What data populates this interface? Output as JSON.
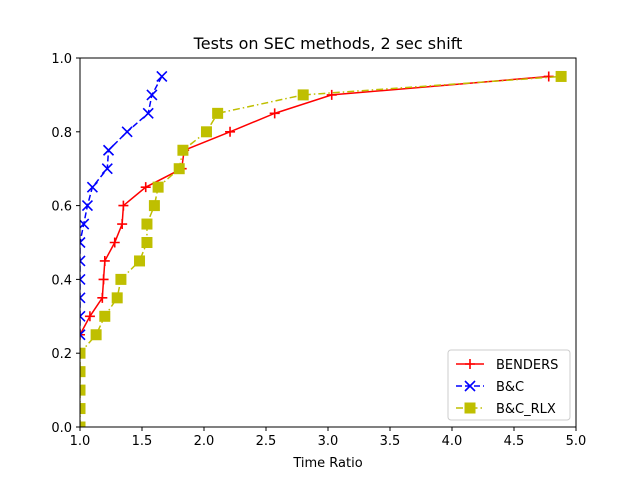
{
  "chart_data": {
    "type": "line",
    "title": "Tests on SEC methods, 2 sec shift",
    "xlabel": "Time Ratio",
    "ylabel": "",
    "xlim": [
      1.0,
      5.0
    ],
    "ylim": [
      0.0,
      1.0
    ],
    "xticks": [
      "1.0",
      "1.5",
      "2.0",
      "2.5",
      "3.0",
      "3.5",
      "4.0",
      "4.5",
      "5.0"
    ],
    "yticks": [
      "0.0",
      "0.2",
      "0.4",
      "0.6",
      "0.8",
      "1.0"
    ],
    "xtick_values": [
      1.0,
      1.5,
      2.0,
      2.5,
      3.0,
      3.5,
      4.0,
      4.5,
      5.0
    ],
    "ytick_values": [
      0.0,
      0.2,
      0.4,
      0.6,
      0.8,
      1.0
    ],
    "grid": false,
    "legend_position": "lower-right",
    "series": [
      {
        "name": "BENDERS",
        "color": "#ff0000",
        "marker": "plus",
        "linestyle": "solid",
        "x": [
          1.0,
          1.08,
          1.18,
          1.19,
          1.2,
          1.28,
          1.34,
          1.35,
          1.53,
          1.82,
          1.84,
          2.21,
          2.57,
          3.03,
          4.78
        ],
        "y": [
          0.25,
          0.3,
          0.35,
          0.4,
          0.45,
          0.5,
          0.55,
          0.6,
          0.65,
          0.7,
          0.75,
          0.8,
          0.85,
          0.9,
          0.95
        ]
      },
      {
        "name": "B&C",
        "color": "#0000ff",
        "marker": "x",
        "linestyle": "dashed",
        "x": [
          1.0,
          1.0,
          1.0,
          1.0,
          1.0,
          1.0,
          1.03,
          1.06,
          1.1,
          1.22,
          1.23,
          1.38,
          1.55,
          1.58,
          1.66
        ],
        "y": [
          0.25,
          0.3,
          0.35,
          0.4,
          0.45,
          0.5,
          0.55,
          0.6,
          0.65,
          0.7,
          0.75,
          0.8,
          0.85,
          0.9,
          0.95
        ]
      },
      {
        "name": "B&C_RLX",
        "color": "#bfbf00",
        "marker": "square",
        "linestyle": "dashdot",
        "x": [
          1.0,
          1.0,
          1.0,
          1.0,
          1.0,
          1.13,
          1.2,
          1.3,
          1.33,
          1.48,
          1.54,
          1.54,
          1.6,
          1.63,
          1.8,
          1.83,
          2.02,
          2.11,
          2.8,
          4.88
        ],
        "y": [
          0.0,
          0.05,
          0.1,
          0.15,
          0.2,
          0.25,
          0.3,
          0.35,
          0.4,
          0.45,
          0.5,
          0.55,
          0.6,
          0.65,
          0.7,
          0.75,
          0.8,
          0.85,
          0.9,
          0.95
        ]
      }
    ]
  }
}
